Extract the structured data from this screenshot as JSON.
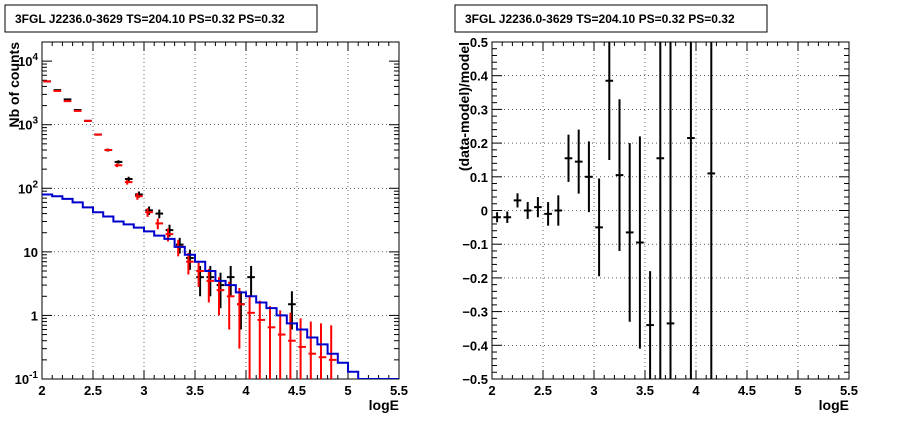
{
  "chart_data": [
    {
      "type": "histogram",
      "title": "3FGL J2236.0-3629 TS=204.10 PS=0.32 PS=0.32",
      "xlabel": "logE",
      "ylabel": "Nb of counts",
      "xlim": [
        2,
        5.5
      ],
      "ylim": [
        0.1,
        20000
      ],
      "yscale": "log",
      "grid": true,
      "xticks": [
        "2",
        "2.5",
        "3",
        "3.5",
        "4",
        "4.5",
        "5",
        "5.5"
      ],
      "xtick_values": [
        2,
        2.5,
        3,
        3.5,
        4,
        4.5,
        5,
        5.5
      ],
      "yticks": [
        "10^{-1}",
        "1",
        "10",
        "10^{2}",
        "10^{3}",
        "10^{4}"
      ],
      "ytick_values": [
        0.1,
        1,
        10,
        100,
        1000,
        10000
      ],
      "bin_width": 0.1,
      "series": [
        {
          "kind": "points",
          "color": "#000000",
          "x": [
            2.05,
            2.15,
            2.25,
            2.35,
            2.45,
            2.55,
            2.65,
            2.75,
            2.85,
            2.95,
            3.05,
            3.15,
            3.25,
            3.35,
            3.45,
            3.55,
            3.65,
            3.75,
            3.85,
            3.95,
            4.05,
            4.45
          ],
          "y": [
            4800,
            3500,
            2500,
            1700,
            1150,
            700,
            400,
            260,
            140,
            80,
            45,
            40,
            22,
            13,
            8,
            4,
            4,
            3,
            4,
            1.5,
            4,
            1.5
          ],
          "yerr_low": [
            4730,
            3440,
            2450,
            1660,
            1115,
            674,
            380,
            244,
            128,
            71,
            38.3,
            33.7,
            17.3,
            9.4,
            5.2,
            2,
            2,
            1.3,
            2,
            0.6,
            2,
            0.6
          ],
          "yerr_high": [
            4870,
            3560,
            2550,
            1740,
            1185,
            726,
            420,
            276,
            152,
            89,
            51.7,
            46.3,
            26.7,
            16.6,
            10.8,
            6,
            6,
            4.7,
            6,
            2.4,
            6,
            2.4
          ]
        },
        {
          "kind": "points",
          "color": "#ff0000",
          "x": [
            2.05,
            2.15,
            2.25,
            2.35,
            2.45,
            2.55,
            2.65,
            2.75,
            2.85,
            2.95,
            3.05,
            3.15,
            3.25,
            3.35,
            3.45,
            3.55,
            3.65,
            3.75,
            3.85,
            3.95,
            4.05,
            4.15,
            4.25,
            4.35,
            4.45,
            4.55,
            4.65,
            4.75,
            4.85
          ],
          "y": [
            4800,
            3400,
            2350,
            1650,
            1150,
            700,
            400,
            230,
            125,
            75,
            42,
            28,
            19,
            12,
            7,
            5,
            3.5,
            2.5,
            2,
            1.5,
            1.1,
            0.85,
            0.65,
            0.5,
            0.4,
            0.32,
            0.25,
            0.22,
            0.2
          ],
          "yerr_low": [
            4731,
            3342,
            2302,
            1610,
            1116,
            674,
            380,
            215,
            114,
            66,
            35.5,
            22.7,
            14.6,
            8.5,
            4.4,
            2.8,
            1.6,
            1,
            0.6,
            0.3,
            0.1,
            0.1,
            0.1,
            0.1,
            0.1,
            0.1,
            0.1,
            0.1,
            0.1
          ],
          "yerr_high": [
            4869,
            3458,
            2398,
            1690,
            1184,
            726,
            420,
            245,
            136,
            84,
            48.5,
            33.3,
            23.4,
            15.5,
            9.6,
            7.2,
            5.4,
            4,
            3.4,
            2.7,
            2.1,
            1.7,
            1.4,
            1.2,
            1.1,
            0.9,
            0.8,
            0.75,
            0.7
          ]
        },
        {
          "kind": "step",
          "color": "#0000cc",
          "edges": [
            2.0,
            2.1,
            2.2,
            2.3,
            2.4,
            2.5,
            2.6,
            2.7,
            2.8,
            2.9,
            3.0,
            3.1,
            3.2,
            3.3,
            3.4,
            3.5,
            3.6,
            3.7,
            3.8,
            3.9,
            4.0,
            4.1,
            4.2,
            4.3,
            4.4,
            4.5,
            4.6,
            4.7,
            4.8,
            4.9,
            5.0,
            5.1,
            5.2,
            5.3,
            5.4,
            5.5
          ],
          "values": [
            80,
            75,
            68,
            60,
            50,
            42,
            36,
            30,
            27,
            24,
            21,
            18,
            16,
            12,
            9,
            7,
            5,
            3.5,
            3,
            2.3,
            2,
            1.6,
            1.3,
            1,
            0.75,
            0.6,
            0.45,
            0.35,
            0.25,
            0.18,
            0.13,
            0.1,
            0.1,
            0.1,
            0.1
          ]
        }
      ]
    },
    {
      "type": "scatter",
      "title": "3FGL J2236.0-3629 TS=204.10 PS=0.32 PS=0.32",
      "xlabel": "logE",
      "ylabel": "(data-model)/model",
      "xlim": [
        2,
        5.5
      ],
      "ylim": [
        -0.5,
        0.5
      ],
      "grid": true,
      "xticks": [
        "2",
        "2.5",
        "3",
        "3.5",
        "4",
        "4.5",
        "5",
        "5.5"
      ],
      "xtick_values": [
        2,
        2.5,
        3,
        3.5,
        4,
        4.5,
        5,
        5.5
      ],
      "yticks": [
        "−0.5",
        "−0.4",
        "−0.3",
        "−0.2",
        "−0.1",
        "0",
        "0.1",
        "0.2",
        "0.3",
        "0.4",
        "0.5"
      ],
      "ytick_values": [
        -0.5,
        -0.4,
        -0.3,
        -0.2,
        -0.1,
        0,
        0.1,
        0.2,
        0.3,
        0.4,
        0.5
      ],
      "bin_width": 0.1,
      "series": [
        {
          "kind": "points",
          "color": "#000000",
          "x": [
            2.05,
            2.15,
            2.25,
            2.35,
            2.45,
            2.55,
            2.65,
            2.75,
            2.85,
            2.95,
            3.05,
            3.15,
            3.25,
            3.35,
            3.45,
            3.55,
            3.65,
            3.75,
            3.95,
            4.15
          ],
          "y": [
            -0.02,
            -0.02,
            0.03,
            0.0,
            0.01,
            -0.01,
            -0.0,
            0.155,
            0.145,
            0.1,
            -0.05,
            0.385,
            0.105,
            -0.065,
            -0.095,
            -0.34,
            0.155,
            -0.335,
            0.215,
            0.11
          ],
          "yerr_low": [
            -0.035,
            -0.037,
            0.009,
            -0.025,
            -0.02,
            -0.045,
            -0.045,
            0.085,
            0.05,
            -0.005,
            -0.195,
            0.15,
            -0.12,
            -0.33,
            -0.41,
            -0.5,
            -0.5,
            -0.5,
            -0.5,
            -0.5
          ],
          "yerr_high": [
            -0.005,
            -0.003,
            0.051,
            0.025,
            0.04,
            0.025,
            0.045,
            0.225,
            0.24,
            0.205,
            0.095,
            0.5,
            0.33,
            0.2,
            0.22,
            -0.18,
            0.5,
            0.5,
            0.5,
            0.5
          ]
        }
      ]
    }
  ]
}
